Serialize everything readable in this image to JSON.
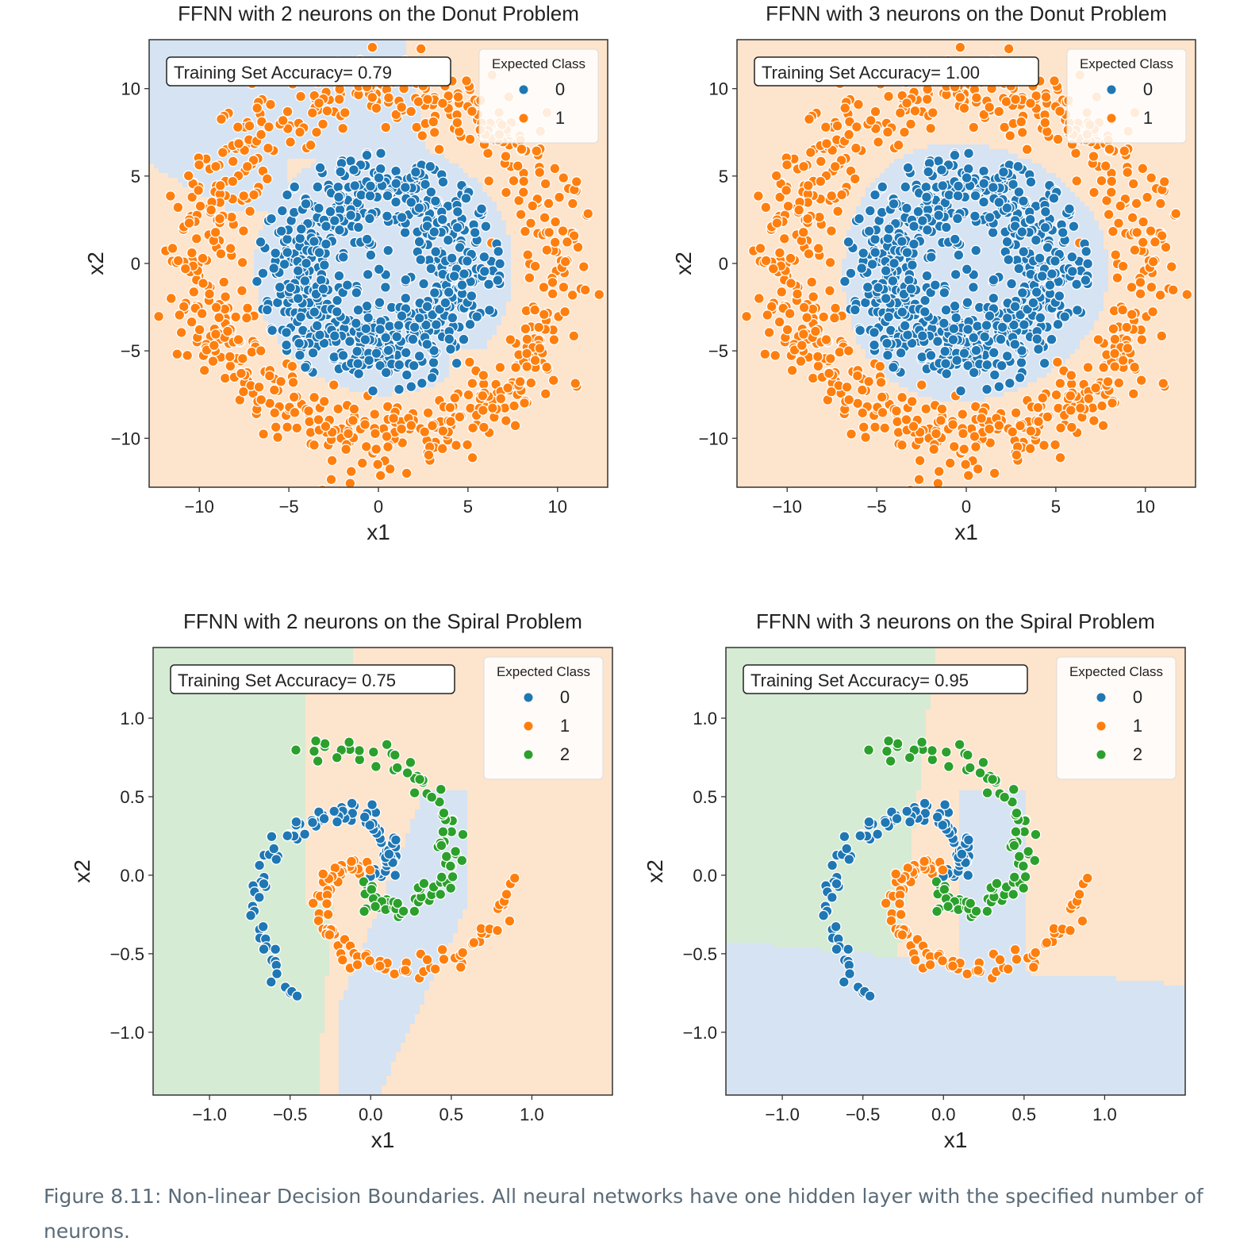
{
  "caption": "Figure 8.11: Non-linear Decision Boundaries. All neural networks have one hidden layer with the specified number of neurons.",
  "colors": {
    "class0": "#1f77b4",
    "class1": "#ff7f0e",
    "class2": "#2ca02c",
    "region0": "#d6e3f2",
    "region1": "#fde4cc",
    "region2": "#d6ebd3"
  },
  "chart_data": [
    {
      "type": "scatter",
      "title": "FFNN with 2 neurons on the Donut Problem",
      "xlabel": "x1",
      "ylabel": "x2",
      "xlim": [
        -12.8,
        12.8
      ],
      "ylim": [
        -12.8,
        12.8
      ],
      "xticks": [
        -10,
        -5,
        0,
        5,
        10
      ],
      "yticks": [
        -10,
        -5,
        0,
        5,
        10
      ],
      "annotation": "Training Set Accuracy= 0.79",
      "legend": {
        "title": "Expected Class",
        "entries": [
          "0",
          "1"
        ],
        "position": "top-right"
      },
      "series": [
        {
          "name": "0",
          "distribution": "disc",
          "inner_radius": 0,
          "outer_radius": 7,
          "approx_count": 700
        },
        {
          "name": "1",
          "distribution": "ring",
          "inner_radius": 8,
          "outer_radius": 12,
          "approx_count": 700
        }
      ],
      "decision_boundary": "class 0 region is a distorted blob over the inner disc and the upper-left corner"
    },
    {
      "type": "scatter",
      "title": "FFNN with 3 neurons on the Donut Problem",
      "xlabel": "x1",
      "ylabel": "x2",
      "xlim": [
        -12.8,
        12.8
      ],
      "ylim": [
        -12.8,
        12.8
      ],
      "xticks": [
        -10,
        -5,
        0,
        5,
        10
      ],
      "yticks": [
        -10,
        -5,
        0,
        5,
        10
      ],
      "annotation": "Training Set Accuracy= 1.00",
      "legend": {
        "title": "Expected Class",
        "entries": [
          "0",
          "1"
        ],
        "position": "top-right"
      },
      "series": [
        {
          "name": "0",
          "distribution": "disc",
          "inner_radius": 0,
          "outer_radius": 7,
          "approx_count": 700
        },
        {
          "name": "1",
          "distribution": "ring",
          "inner_radius": 8,
          "outer_radius": 12,
          "approx_count": 700
        }
      ],
      "decision_boundary": "class 0 region is a rounded polygon enclosing the inner disc"
    },
    {
      "type": "scatter",
      "title": "FFNN with 2 neurons on the Spiral Problem",
      "xlabel": "x1",
      "ylabel": "x2",
      "xlim": [
        -1.35,
        1.5
      ],
      "ylim": [
        -1.4,
        1.45
      ],
      "xticks": [
        -1.0,
        -0.5,
        0.0,
        0.5,
        1.0
      ],
      "yticks": [
        -1.0,
        -0.5,
        0.0,
        0.5,
        1.0
      ],
      "annotation": "Training Set Accuracy= 0.75",
      "legend": {
        "title": "Expected Class",
        "entries": [
          "0",
          "1",
          "2"
        ],
        "position": "top-right"
      },
      "series": [
        {
          "name": "0",
          "distribution": "spiral arm",
          "approx_count": 100
        },
        {
          "name": "1",
          "distribution": "spiral arm",
          "approx_count": 100
        },
        {
          "name": "2",
          "distribution": "spiral arm",
          "approx_count": 100
        }
      ],
      "decision_boundary": "three regions separated by roughly straight boundaries"
    },
    {
      "type": "scatter",
      "title": "FFNN with 3 neurons on the Spiral Problem",
      "xlabel": "x1",
      "ylabel": "x2",
      "xlim": [
        -1.35,
        1.5
      ],
      "ylim": [
        -1.4,
        1.45
      ],
      "xticks": [
        -1.0,
        -0.5,
        0.0,
        0.5,
        1.0
      ],
      "yticks": [
        -1.0,
        -0.5,
        0.0,
        0.5,
        1.0
      ],
      "annotation": "Training Set Accuracy= 0.95",
      "legend": {
        "title": "Expected Class",
        "entries": [
          "0",
          "1",
          "2"
        ],
        "position": "top-right"
      },
      "series": [
        {
          "name": "0",
          "distribution": "spiral arm",
          "approx_count": 100
        },
        {
          "name": "1",
          "distribution": "spiral arm",
          "approx_count": 100
        },
        {
          "name": "2",
          "distribution": "spiral arm",
          "approx_count": 100
        }
      ],
      "decision_boundary": "three regions with piecewise-linear boundaries following the arms"
    }
  ]
}
